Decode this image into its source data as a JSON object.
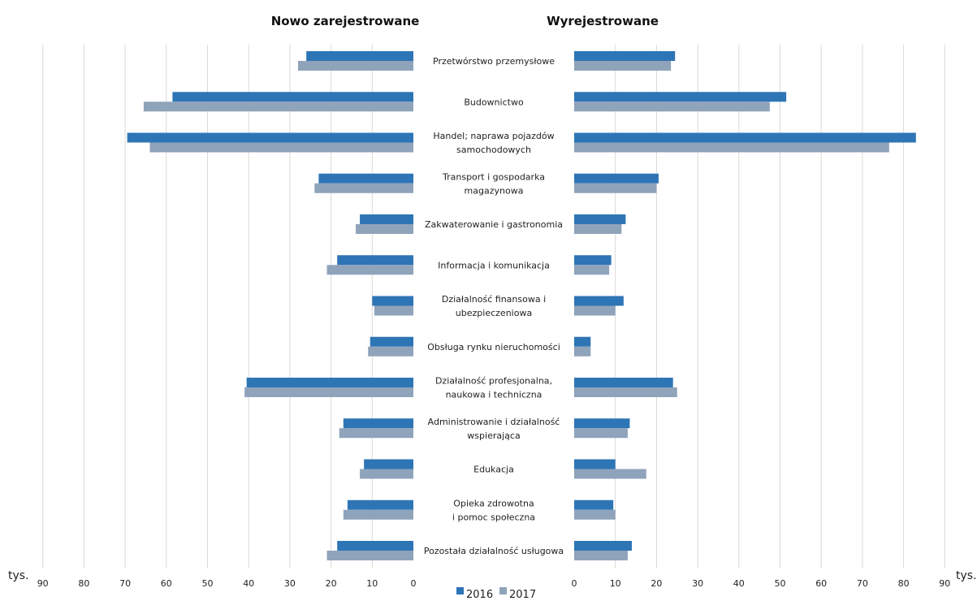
{
  "chart_data": {
    "type": "bar",
    "orientation": "horizontal",
    "unit_label": "tys.",
    "grid": true,
    "legend_position": "bottom",
    "xlim": [
      0,
      90
    ],
    "ticks": [
      0,
      10,
      20,
      30,
      40,
      50,
      60,
      70,
      80,
      90
    ],
    "colors": {
      "2016": "#2e75b6",
      "2017": "#8fa3bb"
    },
    "series_names": [
      "2016",
      "2017"
    ],
    "categories": [
      [
        "Przetwórstwo przemysłowe"
      ],
      [
        "Budownictwo"
      ],
      [
        "Handel; naprawa pojazdów",
        "samochodowych"
      ],
      [
        "Transport i gospodarka",
        "magazynowa"
      ],
      [
        "Zakwaterowanie  i gastronomia"
      ],
      [
        "Informacja i komunikacja"
      ],
      [
        "Działalność finansowa i",
        "ubezpieczeniowa"
      ],
      [
        "Obsługa rynku nieruchomości"
      ],
      [
        "Działalność profesjonalna,",
        "naukowa i techniczna"
      ],
      [
        "Administrowanie i działalność",
        "wspierająca"
      ],
      [
        "Edukacja"
      ],
      [
        "Opieka zdrowotna",
        "i pomoc społeczna"
      ],
      [
        "Pozostała działalność usługowa"
      ]
    ],
    "panels": [
      {
        "title": "Nowo zarejestrowane",
        "series": [
          {
            "name": "2016",
            "values": [
              26,
              58.5,
              69.5,
              23,
              13,
              18.5,
              10,
              10.5,
              40.5,
              17,
              12,
              16,
              18.5
            ]
          },
          {
            "name": "2017",
            "values": [
              28,
              65.5,
              64,
              24,
              14,
              21,
              9.5,
              11,
              41,
              18,
              13,
              17,
              21
            ]
          }
        ]
      },
      {
        "title": "Wyrejestrowane",
        "series": [
          {
            "name": "2016",
            "values": [
              24.5,
              51.5,
              83,
              20.5,
              12.5,
              9,
              12,
              4,
              24,
              13.5,
              10,
              9.5,
              14
            ]
          },
          {
            "name": "2017",
            "values": [
              23.5,
              47.5,
              76.5,
              20,
              11.5,
              8.5,
              10,
              4,
              25,
              13,
              17.5,
              10,
              13
            ]
          }
        ]
      }
    ]
  }
}
